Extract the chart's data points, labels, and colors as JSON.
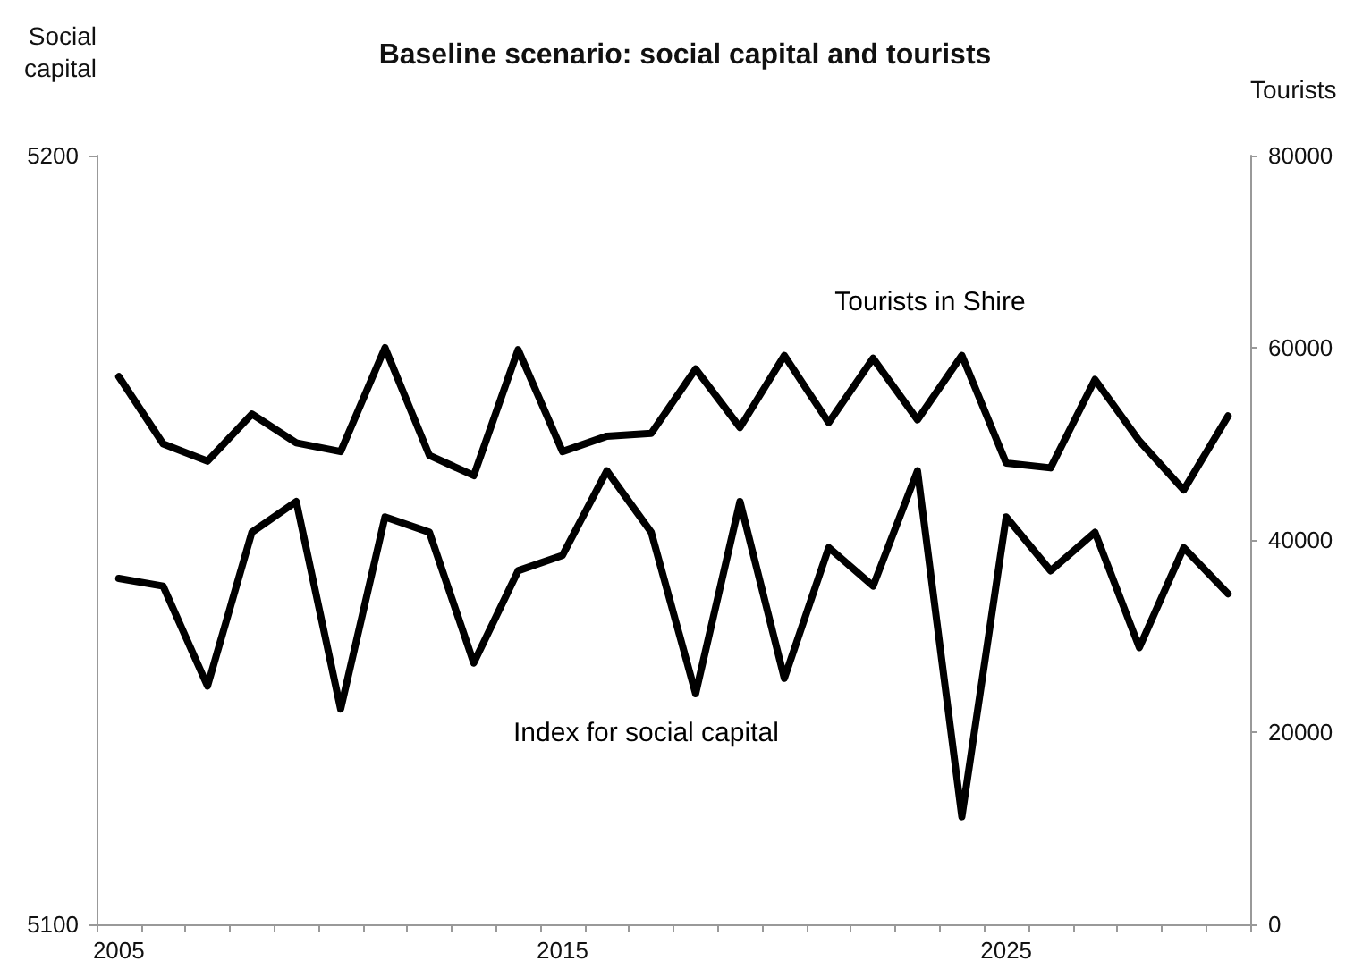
{
  "chart_data": {
    "type": "line",
    "title": "Baseline scenario: social capital and tourists",
    "ylabel": "Social capital",
    "y2label": "Tourists",
    "categories": [
      "2005",
      null,
      null,
      null,
      null,
      null,
      null,
      null,
      null,
      null,
      "2015",
      null,
      null,
      null,
      null,
      null,
      null,
      null,
      null,
      null,
      "2025",
      null,
      null,
      null,
      null,
      null
    ],
    "series": [
      {
        "name": "Tourists in Shire",
        "color": "#000000",
        "axis": "y2",
        "values": [
          57000,
          50000,
          48200,
          53100,
          50100,
          49200,
          60000,
          48800,
          46700,
          59800,
          49200,
          50800,
          51100,
          57800,
          51700,
          59200,
          52200,
          58900,
          52500,
          59200,
          48000,
          47500,
          56700,
          50300,
          45200,
          52900
        ]
      },
      {
        "name": "Index for social capital",
        "color": "#000000",
        "values": [
          5145,
          5144,
          5131,
          5151,
          5155,
          5128,
          5153,
          5151,
          5134,
          5146,
          5148,
          5159,
          5151,
          5130,
          5155,
          5132,
          5149,
          5144,
          5159,
          5114,
          5153,
          5146,
          5151,
          5136,
          5149,
          5143
        ]
      }
    ],
    "ylim": [
      5100,
      5200
    ],
    "yticks": [
      5100,
      5200
    ],
    "y2lim": [
      0,
      80000
    ],
    "y2ticks": [
      0,
      20000,
      40000,
      60000,
      80000
    ],
    "grid": false,
    "legend": false,
    "marker": "none",
    "line_style": "solid"
  }
}
